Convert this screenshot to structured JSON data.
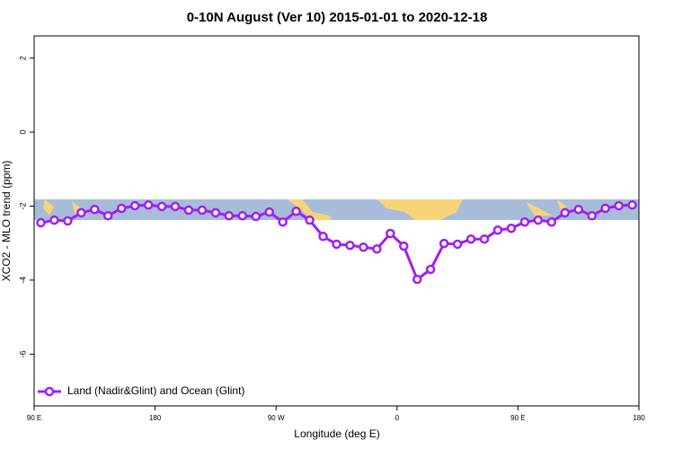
{
  "chart_data": {
    "type": "line",
    "title": "0-10N August (Ver 10)   2015-01-01 to 2020-12-18",
    "x_label": "Longitude (deg E)",
    "y_label": "XCO2 - MLO trend (ppm)",
    "x": [
      95,
      105,
      115,
      125,
      135,
      145,
      155,
      165,
      175,
      185,
      195,
      205,
      215,
      225,
      235,
      245,
      255,
      265,
      275,
      285,
      295,
      305,
      315,
      325,
      335,
      345,
      355,
      365,
      375,
      385,
      395,
      405,
      415,
      425,
      435,
      445,
      455,
      465,
      475,
      485,
      495,
      505,
      515,
      525,
      535
    ],
    "series": [
      {
        "name": "Land (Nadir&Glint) and Ocean (Glint)",
        "color": "#a020f0",
        "values": [
          -2.45,
          -2.38,
          -2.4,
          -2.18,
          -2.09,
          -2.26,
          -2.06,
          -1.99,
          -1.97,
          -2.01,
          -2.01,
          -2.11,
          -2.11,
          -2.18,
          -2.26,
          -2.26,
          -2.28,
          -2.16,
          -2.43,
          -2.14,
          -2.38,
          -2.82,
          -3.03,
          -3.06,
          -3.11,
          -3.16,
          -2.74,
          -3.08,
          -3.98,
          -3.71,
          -3.01,
          -3.03,
          -2.89,
          -2.89,
          -2.65,
          -2.6,
          -2.43,
          -2.38,
          -2.43,
          -2.18,
          -2.09,
          -2.26,
          -2.06,
          -1.99,
          -1.97
        ]
      }
    ],
    "xlim": [
      90,
      540
    ],
    "xticks": [
      {
        "value": 90,
        "label": "90 E"
      },
      180,
      {
        "value": 270,
        "label": "90 W"
      },
      {
        "value": 360,
        "label": "0"
      },
      {
        "value": 450,
        "label": "90 E"
      },
      {
        "value": 540,
        "label": "180"
      }
    ],
    "ylim": [
      -7.4,
      2.6
    ],
    "yticks": [
      -6,
      -4,
      -2,
      0,
      2
    ],
    "legend": "bottom-left"
  }
}
